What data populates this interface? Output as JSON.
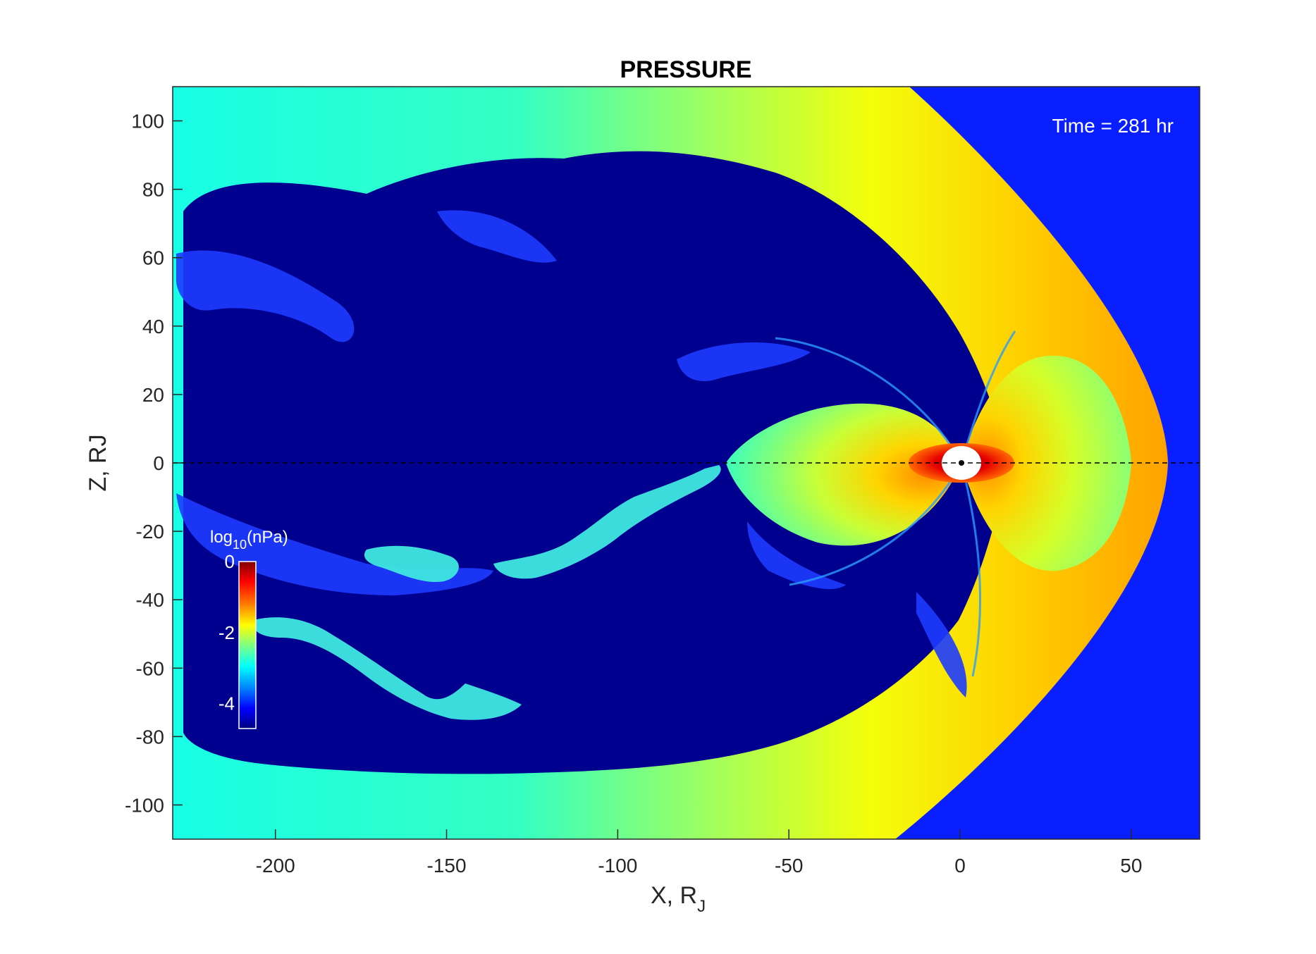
{
  "chart_data": {
    "type": "heatmap",
    "title": "PRESSURE",
    "xlabel": "X, R",
    "xlabel_sub": "J",
    "ylabel": "Z, RJ",
    "xlim": [
      -230,
      70
    ],
    "ylim": [
      -110,
      110
    ],
    "xticks": [
      -200,
      -150,
      -100,
      -50,
      0,
      50
    ],
    "yticks": [
      100,
      80,
      60,
      40,
      20,
      0,
      -20,
      -40,
      -60,
      -80,
      -100
    ],
    "annotation": "Time = 281 hr",
    "colorbar": {
      "label_prefix": "log",
      "label_sub": "10",
      "label_suffix": "(nPa)",
      "range": [
        -4.7,
        0
      ],
      "ticks": [
        0,
        -2,
        -4
      ],
      "colormap": "jet"
    },
    "reference_line": {
      "z": 0,
      "style": "dashed"
    },
    "field_description": {
      "solar_wind_log_pressure": -4.0,
      "magnetosheath_log_pressure_range": [
        -3.0,
        -1.4
      ],
      "lobe_log_pressure": -4.7,
      "inner_magnetosphere_peak_log_pressure": 0,
      "bow_shock_nose_x": 61,
      "magnetopause_nose_x": 48
    }
  },
  "colors": {
    "solar_wind": "#0a1fff",
    "lobe": "#00008f",
    "peak": "#800000",
    "axis": "#262626"
  }
}
